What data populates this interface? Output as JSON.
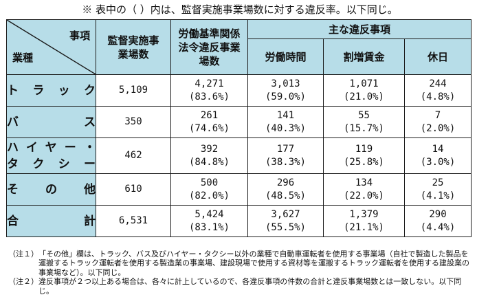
{
  "caption": "※ 表中の（ ）内は、監督実施事業場数に対する違反率。以下同じ。",
  "table": {
    "corner_top": "事項",
    "corner_bottom": "業種",
    "col_inspected": "監督実施事業場数",
    "col_violation": "労働基準関係法令違反事業場数",
    "col_major_group": "主な違反事項",
    "col_hours": "労働時間",
    "col_premium": "割増賃金",
    "col_holiday": "休日",
    "rows": [
      {
        "label": "トラック",
        "label_lines": [
          "トラック"
        ],
        "inspected": "5,109",
        "violation": "4,271",
        "violation_pct": "(83.6%)",
        "hours": "3,013",
        "hours_pct": "(59.0%)",
        "premium": "1,071",
        "premium_pct": "(21.0%)",
        "holiday": "244",
        "holiday_pct": "(4.8%)"
      },
      {
        "label": "バス",
        "label_lines": [
          "バス"
        ],
        "inspected": "350",
        "violation": "261",
        "violation_pct": "(74.6%)",
        "hours": "141",
        "hours_pct": "(40.3%)",
        "premium": "55",
        "premium_pct": "(15.7%)",
        "holiday": "7",
        "holiday_pct": "(2.0%)"
      },
      {
        "label": "ハイヤー・タクシー",
        "label_lines": [
          "ハイヤー・",
          "タクシー"
        ],
        "inspected": "462",
        "violation": "392",
        "violation_pct": "(84.8%)",
        "hours": "177",
        "hours_pct": "(38.3%)",
        "premium": "119",
        "premium_pct": "(25.8%)",
        "holiday": "14",
        "holiday_pct": "(3.0%)"
      },
      {
        "label": "その他",
        "label_lines": [
          "その他"
        ],
        "inspected": "610",
        "violation": "500",
        "violation_pct": "(82.0%)",
        "hours": "296",
        "hours_pct": "(48.5%)",
        "premium": "134",
        "premium_pct": "(22.0%)",
        "holiday": "25",
        "holiday_pct": "(4.1%)"
      },
      {
        "label": "合計",
        "label_lines": [
          "合計"
        ],
        "inspected": "6,531",
        "violation": "5,424",
        "violation_pct": "(83.1%)",
        "hours": "3,627",
        "hours_pct": "(55.5%)",
        "premium": "1,379",
        "premium_pct": "(21.1%)",
        "holiday": "290",
        "holiday_pct": "(4.4%)"
      }
    ]
  },
  "notes": [
    {
      "label": "（注１）",
      "text": "「その他」欄は、トラック、バス及びハイヤー・タクシー以外の業種で自動車運転者を使用する事業場（自社で製造した製品を運搬するトラック運転者を使用する製造業の事業場、建設現場で使用する資材等を運搬するトラック運転者を使用する建設業の事業場など）。以下同じ。"
    },
    {
      "label": "（注２）",
      "text": "違反事項が２つ以上ある場合は、各々に計上しているので、各違反事項の件数の合計と違反事業場数とは一致しない。以下同じ。"
    }
  ]
}
